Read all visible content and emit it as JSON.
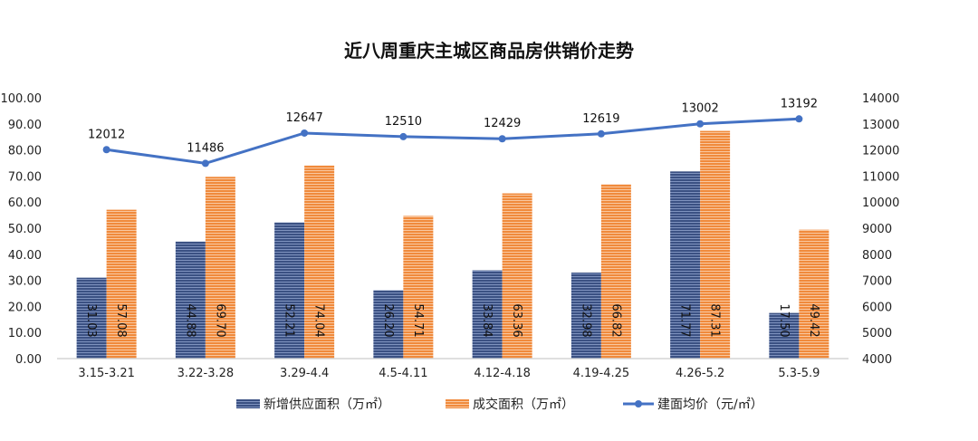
{
  "chart_data": {
    "type": "bar",
    "title": "近八周重庆主城区商品房供销价走势",
    "categories": [
      "3.15-3.21",
      "3.22-3.28",
      "3.29-4.4",
      "4.5-4.11",
      "4.12-4.18",
      "4.19-4.25",
      "4.26-5.2",
      "5.3-5.9"
    ],
    "series": [
      {
        "name": "新增供应面积（万㎡）",
        "type": "bar",
        "axis": "left",
        "color": "#3b5183",
        "values": [
          31.03,
          44.88,
          52.21,
          26.2,
          33.84,
          32.98,
          71.77,
          17.5
        ],
        "labels": [
          "31.03",
          "44.88",
          "52.21",
          "26.20",
          "33.84",
          "32.98",
          "71.77",
          "17.50"
        ]
      },
      {
        "name": "成交面积（万㎡）",
        "type": "bar",
        "axis": "left",
        "color": "#f08a3c",
        "values": [
          57.08,
          69.7,
          74.04,
          54.71,
          63.36,
          66.82,
          87.31,
          49.42
        ],
        "labels": [
          "57.08",
          "69.70",
          "74.04",
          "54.71",
          "63.36",
          "66.82",
          "87.31",
          "49.42"
        ]
      },
      {
        "name": "建面均价（元/㎡）",
        "type": "line",
        "axis": "right",
        "color": "#4472c4",
        "values": [
          12012,
          11486,
          12647,
          12510,
          12429,
          12619,
          13002,
          13192
        ],
        "labels": [
          "12012",
          "11486",
          "12647",
          "12510",
          "12429",
          "12619",
          "13002",
          "13192"
        ]
      }
    ],
    "y_left": {
      "range": [
        0,
        100
      ],
      "ticks": [
        "0.00",
        "10.00",
        "20.00",
        "30.00",
        "40.00",
        "50.00",
        "60.00",
        "70.00",
        "80.00",
        "90.00",
        "100.00"
      ]
    },
    "y_right": {
      "range": [
        4000,
        14000
      ],
      "ticks": [
        "4000",
        "5000",
        "6000",
        "7000",
        "8000",
        "9000",
        "10000",
        "11000",
        "12000",
        "13000",
        "14000"
      ]
    },
    "grid": false,
    "legend_position": "bottom"
  }
}
